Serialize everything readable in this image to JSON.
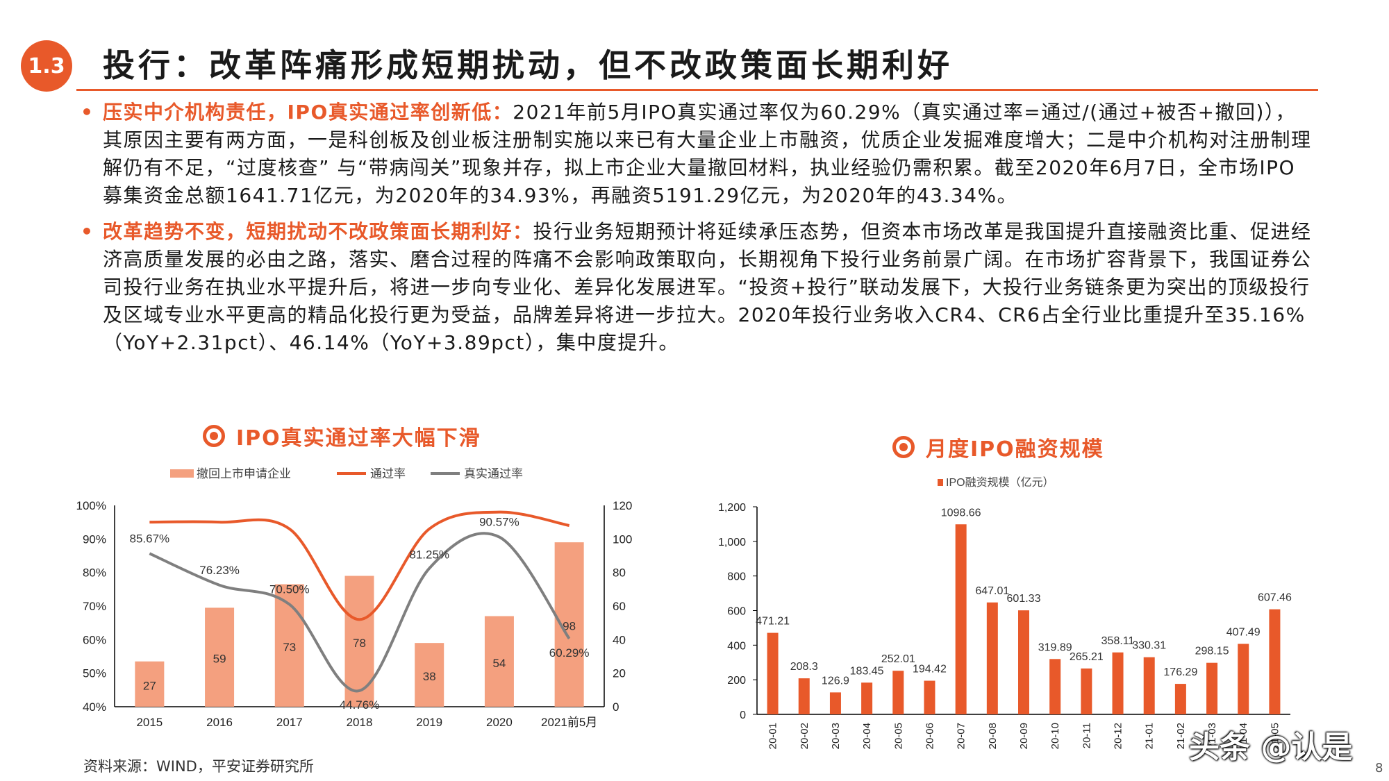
{
  "section": "1.3",
  "title": "投行：改革阵痛形成短期扰动，但不改政策面长期利好",
  "bullets": [
    {
      "lead": "压实中介机构责任，IPO真实通过率创新低：",
      "text": "2021年前5月IPO真实通过率仅为60.29%（真实通过率=通过/(通过+被否+撤回)），其原因主要有两方面，一是科创板及创业板注册制实施以来已有大量企业上市融资，优质企业发掘难度增大；二是中介机构对注册制理解仍有不足，“过度核查” 与“带病闯关”现象并存，拟上市企业大量撤回材料，执业经验仍需积累。截至2020年6月7日，全市场IPO募集资金总额1641.71亿元，为2020年的34.93%，再融资5191.29亿元，为2020年的43.34%。"
    },
    {
      "lead": "改革趋势不变，短期扰动不改政策面长期利好：",
      "text": "投行业务短期预计将延续承压态势，但资本市场改革是我国提升直接融资比重、促进经济高质量发展的必由之路，落实、磨合过程的阵痛不会影响政策取向，长期视角下投行业务前景广阔。在市场扩容背景下，我国证券公司投行业务在执业水平提升后，将进一步向专业化、差异化发展进军。“投资+投行”联动发展下，大投行业务链条更为突出的顶级投行及区域专业水平更高的精品化投行更为受益，品牌差异将进一步拉大。2020年投行业务收入CR4、CR6占全行业比重提升至35.16%（YoY+2.31pct）、46.14%（YoY+3.89pct），集中度提升。"
    }
  ],
  "charts": {
    "left_title": "IPO真实通过率大幅下滑",
    "right_title": "月度IPO融资规模"
  },
  "chart_data": [
    {
      "type": "bar",
      "title": "IPO真实通过率大幅下滑",
      "categories": [
        "2015",
        "2016",
        "2017",
        "2018",
        "2019",
        "2020",
        "2021前5月"
      ],
      "series": [
        {
          "name": "撤回上市申请企业",
          "kind": "bar",
          "axis": "right",
          "color": "#f4a07f",
          "values": [
            27,
            59,
            73,
            78,
            38,
            54,
            98
          ]
        },
        {
          "name": "通过率",
          "kind": "line",
          "axis": "left",
          "color": "#e8592a",
          "values": [
            0.95,
            0.95,
            0.93,
            0.66,
            0.93,
            0.98,
            0.94
          ]
        },
        {
          "name": "真实通过率",
          "kind": "line",
          "axis": "left",
          "color": "#7f7f7f",
          "values": [
            0.8567,
            0.7623,
            0.705,
            0.4476,
            0.8125,
            0.9057,
            0.6029
          ]
        }
      ],
      "point_labels": [
        "85.67%",
        "76.23%",
        "70.50%",
        "44.76%",
        "81.25%",
        "90.57%",
        "60.29%"
      ],
      "y_left": {
        "ticks": [
          "40%",
          "50%",
          "60%",
          "70%",
          "80%",
          "90%",
          "100%"
        ],
        "lim": [
          0.4,
          1.0
        ]
      },
      "y_right": {
        "ticks": [
          "0",
          "20",
          "40",
          "60",
          "80",
          "100",
          "120"
        ],
        "lim": [
          0,
          120
        ]
      },
      "legend_position": "top",
      "grid": false
    },
    {
      "type": "bar",
      "title": "月度IPO融资规模",
      "categories": [
        "20-01",
        "20-02",
        "20-03",
        "20-04",
        "20-05",
        "20-06",
        "20-07",
        "20-08",
        "20-09",
        "20-10",
        "20-11",
        "20-12",
        "21-01",
        "21-02",
        "21-03",
        "21-04",
        "21-05"
      ],
      "series": [
        {
          "name": "IPO融资规模（亿元）",
          "color": "#e8592a",
          "values": [
            471.21,
            208.3,
            126.9,
            183.45,
            252.01,
            194.42,
            1098.66,
            647.01,
            601.33,
            319.89,
            265.21,
            358.11,
            330.31,
            176.29,
            298.15,
            407.49,
            607.46
          ]
        }
      ],
      "value_labels": [
        "471.21",
        "208.3",
        "126.9",
        "183.45",
        "252.01",
        "194.42",
        "1098.66",
        "647.01",
        "601.33",
        "319.89",
        "265.21",
        "358.11",
        "330.31",
        "176.29",
        "298.15",
        "407.49",
        "607.46"
      ],
      "y_ticks": [
        "0",
        "200",
        "400",
        "600",
        "800",
        "1,000",
        "1,200"
      ],
      "ylim": [
        0,
        1200
      ],
      "legend_position": "top",
      "grid": false
    }
  ],
  "source": "资料来源：WIND，平安证券研究所",
  "page_number": "8",
  "watermark": "头条 @认是"
}
